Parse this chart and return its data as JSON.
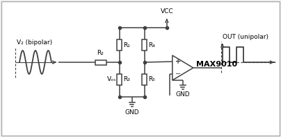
{
  "bg_color": "#f2f2f2",
  "border_color": "#aaaaaa",
  "line_color": "#404040",
  "text_color": "#000000",
  "figsize": [
    4.04,
    1.98
  ],
  "dpi": 100,
  "sine_label": "V₂ (bipolar)",
  "out_label": "OUT (unipolar)",
  "vcc_label": "VCC",
  "gnd_label": "GND",
  "ic_label": "MAX9010",
  "vos_label": "Vₒₛ",
  "r1": "R₁",
  "r2": "R₂",
  "r3": "R₃",
  "r4": "R₄",
  "r5": "R₅"
}
